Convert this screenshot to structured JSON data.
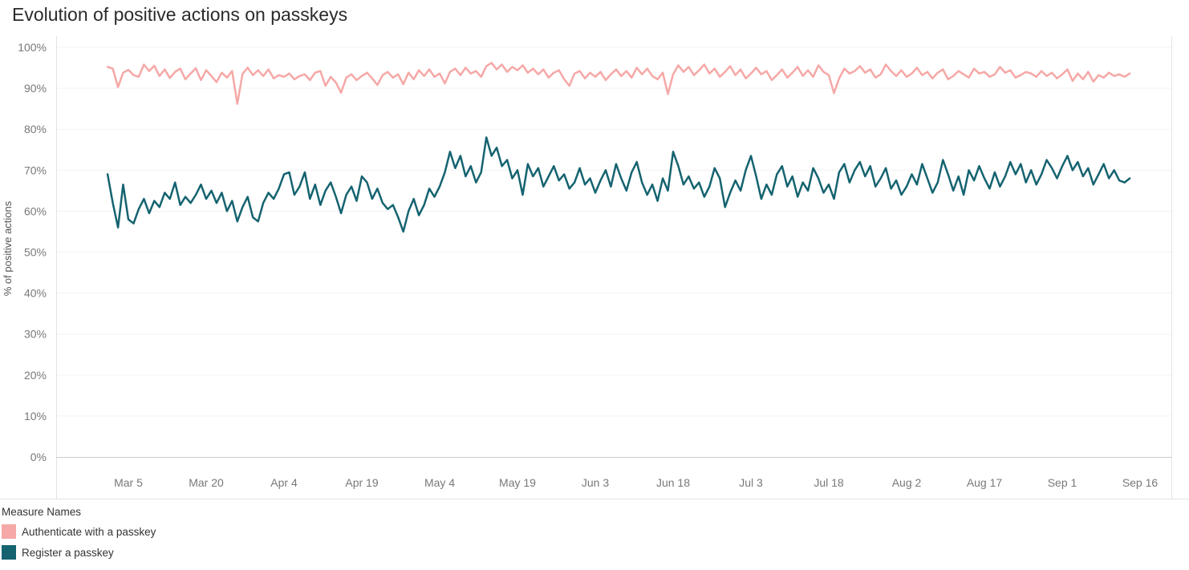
{
  "title": "Evolution of positive actions on passkeys",
  "y_axis": {
    "label": "% of positive actions",
    "tick_values": [
      0,
      10,
      20,
      30,
      40,
      50,
      60,
      70,
      80,
      90,
      100
    ],
    "tick_labels": [
      "0%",
      "10%",
      "20%",
      "30%",
      "40%",
      "50%",
      "60%",
      "70%",
      "80%",
      "90%",
      "100%"
    ]
  },
  "legend": {
    "title": "Measure Names",
    "items": [
      {
        "label": "Authenticate with a passkey",
        "color": "#F5A8A6"
      },
      {
        "label": "Register a passkey",
        "color": "#156370"
      }
    ]
  },
  "chart_data": {
    "type": "line",
    "title": "Evolution of positive actions on passkeys",
    "xlabel": "",
    "ylabel": "% of positive actions",
    "ylim": [
      0,
      100
    ],
    "grid": "horizontal-faint",
    "legend_position": "bottom-left",
    "x": {
      "start": "Mar 1",
      "end": "Sep 14",
      "interval": "daily",
      "tick_labels": [
        "Mar 5",
        "Mar 20",
        "Apr 4",
        "Apr 19",
        "May 4",
        "May 19",
        "Jun 3",
        "Jun 18",
        "Jul 3",
        "Jul 18",
        "Aug 2",
        "Aug 17",
        "Sep 1",
        "Sep 16"
      ],
      "tick_day_offsets": [
        4,
        19,
        34,
        49,
        64,
        79,
        94,
        109,
        124,
        139,
        154,
        169,
        184,
        199
      ]
    },
    "series": [
      {
        "id": "authenticate",
        "name": "Authenticate with a passkey",
        "color": "#F5A8A6",
        "values": [
          95.2,
          94.8,
          90.3,
          93.8,
          94.5,
          93.2,
          92.8,
          95.8,
          94.2,
          95.5,
          93.0,
          94.6,
          92.5,
          94.0,
          94.8,
          92.2,
          93.6,
          94.9,
          92.0,
          94.4,
          93.0,
          91.5,
          93.8,
          92.6,
          94.2,
          86.2,
          93.5,
          95.0,
          93.2,
          94.4,
          93.0,
          94.6,
          92.4,
          93.2,
          92.8,
          93.6,
          92.2,
          93.0,
          93.4,
          92.0,
          93.8,
          94.2,
          90.6,
          92.8,
          91.4,
          88.9,
          92.6,
          93.4,
          92.0,
          93.0,
          93.8,
          92.4,
          90.8,
          93.2,
          94.0,
          92.6,
          93.4,
          91.0,
          93.8,
          92.2,
          94.4,
          93.0,
          94.6,
          92.8,
          93.6,
          91.2,
          94.0,
          94.8,
          93.2,
          95.0,
          93.6,
          94.2,
          92.8,
          95.4,
          96.2,
          94.6,
          95.8,
          94.0,
          95.2,
          94.4,
          95.6,
          93.8,
          94.8,
          93.4,
          94.6,
          92.6,
          93.8,
          94.4,
          92.2,
          90.6,
          93.6,
          94.2,
          92.4,
          93.8,
          92.8,
          94.0,
          92.0,
          93.4,
          94.6,
          93.0,
          94.2,
          92.6,
          95.0,
          93.4,
          94.8,
          93.0,
          92.2,
          93.8,
          88.6,
          93.4,
          95.6,
          94.0,
          95.2,
          93.2,
          94.4,
          95.8,
          93.6,
          94.8,
          92.8,
          94.0,
          95.4,
          93.2,
          94.6,
          92.4,
          93.6,
          95.0,
          93.4,
          94.2,
          92.0,
          93.2,
          94.6,
          92.6,
          93.8,
          95.2,
          93.0,
          94.4,
          92.8,
          95.6,
          94.0,
          93.2,
          88.8,
          92.4,
          94.8,
          93.6,
          94.2,
          95.4,
          93.8,
          94.6,
          92.6,
          93.4,
          95.8,
          94.2,
          93.0,
          94.4,
          92.8,
          93.6,
          95.0,
          93.2,
          94.0,
          92.4,
          93.8,
          94.6,
          92.2,
          93.0,
          94.2,
          93.4,
          92.6,
          94.8,
          93.6,
          94.0,
          92.8,
          93.4,
          95.2,
          93.8,
          94.4,
          92.6,
          93.2,
          94.0,
          93.6,
          92.8,
          94.2,
          93.0,
          93.8,
          92.4,
          93.4,
          94.6,
          91.8,
          93.6,
          92.2,
          94.0,
          91.6,
          93.2,
          92.6,
          93.8,
          93.0,
          93.4,
          92.8,
          93.6
        ]
      },
      {
        "id": "register",
        "name": "Register a passkey",
        "color": "#156370",
        "values": [
          69.0,
          62.0,
          56.0,
          66.5,
          58.0,
          57.0,
          60.5,
          63.0,
          59.5,
          62.5,
          61.0,
          64.5,
          63.0,
          67.0,
          61.5,
          63.5,
          62.0,
          64.0,
          66.5,
          63.0,
          65.0,
          62.0,
          64.5,
          60.0,
          62.5,
          57.5,
          61.0,
          63.5,
          58.5,
          57.5,
          62.0,
          64.5,
          63.0,
          65.5,
          69.0,
          69.5,
          64.0,
          66.0,
          69.5,
          63.0,
          66.5,
          61.5,
          65.0,
          67.0,
          63.5,
          59.5,
          64.0,
          66.0,
          62.5,
          68.5,
          67.0,
          63.0,
          65.5,
          62.0,
          60.5,
          61.5,
          58.5,
          55.0,
          60.0,
          63.0,
          59.0,
          61.5,
          65.5,
          63.5,
          66.0,
          69.5,
          74.5,
          70.5,
          73.5,
          68.5,
          71.0,
          67.0,
          69.5,
          78.0,
          73.5,
          75.5,
          71.0,
          72.5,
          68.0,
          70.0,
          64.0,
          71.5,
          68.5,
          70.5,
          66.0,
          68.5,
          71.0,
          67.5,
          69.0,
          65.5,
          67.0,
          70.5,
          66.5,
          68.0,
          64.5,
          67.5,
          70.0,
          66.0,
          71.5,
          68.0,
          65.0,
          69.5,
          72.0,
          67.0,
          64.0,
          66.5,
          62.5,
          68.0,
          65.0,
          74.5,
          71.0,
          66.5,
          68.5,
          65.5,
          67.0,
          63.5,
          66.0,
          70.5,
          68.0,
          61.0,
          64.5,
          67.5,
          65.0,
          70.0,
          73.5,
          68.5,
          63.0,
          66.5,
          64.0,
          69.0,
          71.0,
          66.0,
          68.5,
          63.5,
          67.0,
          65.0,
          70.5,
          68.0,
          64.5,
          66.5,
          63.0,
          69.5,
          71.5,
          67.0,
          70.0,
          72.0,
          68.5,
          71.0,
          66.0,
          68.0,
          70.5,
          65.5,
          67.5,
          64.0,
          66.0,
          69.0,
          66.5,
          71.5,
          68.0,
          64.5,
          67.0,
          72.5,
          69.0,
          65.0,
          68.5,
          64.0,
          70.0,
          67.5,
          71.0,
          68.0,
          65.5,
          69.5,
          66.0,
          68.5,
          72.0,
          69.0,
          71.5,
          67.0,
          70.0,
          66.5,
          69.0,
          72.5,
          70.5,
          68.0,
          71.0,
          73.5,
          70.0,
          72.0,
          68.5,
          70.5,
          66.5,
          69.0,
          71.5,
          68.0,
          70.0,
          67.5,
          67.0,
          68.0
        ]
      }
    ]
  }
}
